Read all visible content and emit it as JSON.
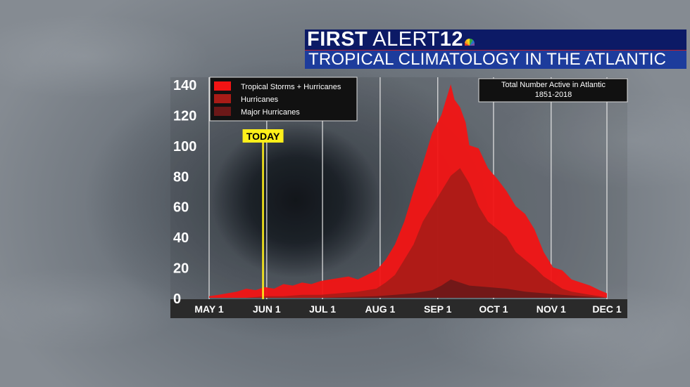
{
  "brand": {
    "name_part1": "FIRST",
    "name_part2": " ALERT",
    "name_part3": "12"
  },
  "subtitle": "TROPICAL CLIMATOLOGY IN THE ATLANTIC",
  "colors": {
    "ts": "#f21414",
    "hurr": "#a81c17",
    "major": "#6b1818",
    "today": "#ffef1a",
    "brand_bg": "#0c1a66",
    "subtitle_bg": "#1d3c9c"
  },
  "chart_data": {
    "type": "area",
    "title": "Total Number Active in Atlantic",
    "subtitle": "1851-2018",
    "ylim": [
      0,
      140
    ],
    "yticks": [
      0,
      20,
      40,
      60,
      80,
      100,
      120,
      140
    ],
    "xticks": [
      {
        "label": "MAY 1",
        "day": 0
      },
      {
        "label": "JUN 1",
        "day": 31
      },
      {
        "label": "JUL 1",
        "day": 61
      },
      {
        "label": "AUG 1",
        "day": 92
      },
      {
        "label": "SEP 1",
        "day": 123
      },
      {
        "label": "OCT 1",
        "day": 153
      },
      {
        "label": "NOV 1",
        "day": 184
      },
      {
        "label": "DEC 1",
        "day": 214
      }
    ],
    "today": {
      "label": "TODAY",
      "day": 29
    },
    "legend": [
      "Tropical Storms + Hurricanes",
      "Hurricanes",
      "Major Hurricanes"
    ],
    "series": [
      {
        "name": "Tropical Storms + Hurricanes",
        "x": [
          0,
          5,
          10,
          15,
          20,
          25,
          30,
          35,
          40,
          45,
          50,
          55,
          60,
          65,
          70,
          75,
          80,
          85,
          90,
          95,
          100,
          105,
          110,
          115,
          120,
          125,
          130,
          132,
          135,
          138,
          140,
          145,
          150,
          155,
          160,
          165,
          170,
          175,
          180,
          185,
          190,
          195,
          200,
          205,
          210,
          214
        ],
        "y": [
          1,
          2,
          3,
          4,
          6,
          5,
          7,
          6,
          9,
          8,
          10,
          9,
          11,
          12,
          13,
          14,
          12,
          15,
          18,
          25,
          35,
          50,
          70,
          88,
          108,
          120,
          140,
          130,
          125,
          115,
          100,
          98,
          85,
          78,
          70,
          60,
          55,
          45,
          30,
          20,
          18,
          12,
          10,
          8,
          5,
          3
        ]
      },
      {
        "name": "Hurricanes",
        "x": [
          0,
          10,
          20,
          30,
          40,
          50,
          60,
          70,
          80,
          90,
          95,
          100,
          105,
          110,
          115,
          120,
          125,
          130,
          135,
          140,
          145,
          150,
          155,
          160,
          165,
          170,
          175,
          180,
          185,
          190,
          195,
          200,
          205,
          210,
          214
        ],
        "y": [
          0,
          0,
          0,
          1,
          1,
          2,
          2,
          3,
          4,
          6,
          10,
          15,
          25,
          35,
          50,
          60,
          70,
          80,
          85,
          75,
          60,
          50,
          45,
          40,
          30,
          25,
          20,
          14,
          10,
          6,
          4,
          3,
          2,
          1,
          0
        ]
      },
      {
        "name": "Major Hurricanes",
        "x": [
          0,
          30,
          60,
          90,
          100,
          110,
          120,
          125,
          130,
          135,
          140,
          150,
          160,
          170,
          180,
          190,
          200,
          214
        ],
        "y": [
          0,
          0,
          0,
          1,
          2,
          3,
          5,
          8,
          12,
          10,
          8,
          7,
          6,
          4,
          3,
          2,
          1,
          0
        ]
      }
    ]
  }
}
